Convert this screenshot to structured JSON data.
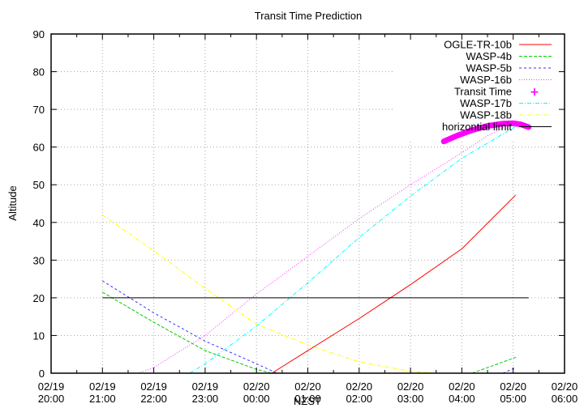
{
  "chart_data": {
    "type": "line",
    "title": "Transit Time Prediction",
    "xlabel": "NZST",
    "ylabel": "Altitude",
    "ylim": [
      0,
      90
    ],
    "yticks": [
      0,
      10,
      20,
      30,
      40,
      50,
      60,
      70,
      80,
      90
    ],
    "xlim_hours_from_start": [
      0,
      10
    ],
    "xticks": [
      {
        "h": 0,
        "date": "02/19",
        "time": "20:00"
      },
      {
        "h": 1,
        "date": "02/19",
        "time": "21:00"
      },
      {
        "h": 2,
        "date": "02/19",
        "time": "22:00"
      },
      {
        "h": 3,
        "date": "02/19",
        "time": "23:00"
      },
      {
        "h": 4,
        "date": "02/20",
        "time": "00:00"
      },
      {
        "h": 5,
        "date": "02/20",
        "time": "01:00"
      },
      {
        "h": 6,
        "date": "02/20",
        "time": "02:00"
      },
      {
        "h": 7,
        "date": "02/20",
        "time": "03:00"
      },
      {
        "h": 8,
        "date": "02/20",
        "time": "04:00"
      },
      {
        "h": 9,
        "date": "02/20",
        "time": "05:00"
      },
      {
        "h": 10,
        "date": "02/20",
        "time": "06:00"
      }
    ],
    "grid": true,
    "legend_position": "top-right",
    "series": [
      {
        "name": "OGLE-TR-10b",
        "color": "#ff0000",
        "dash": "",
        "width": 1,
        "points": [
          [
            4.3,
            0
          ],
          [
            5.0,
            6
          ],
          [
            6.0,
            14.5
          ],
          [
            7.0,
            23.5
          ],
          [
            8.0,
            33
          ],
          [
            9.05,
            47.3
          ]
        ]
      },
      {
        "name": "WASP-4b",
        "color": "#00cc00",
        "dash": "4,2",
        "width": 1,
        "points": [
          [
            1.0,
            21.5
          ],
          [
            2.0,
            13.5
          ],
          [
            3.0,
            6
          ],
          [
            4.0,
            1
          ],
          [
            4.3,
            0
          ]
        ],
        "points2": [
          [
            8.2,
            0
          ],
          [
            9.05,
            4.2
          ]
        ]
      },
      {
        "name": "WASP-5b",
        "color": "#3333ff",
        "dash": "3,3",
        "width": 1,
        "points": [
          [
            1.0,
            24.5
          ],
          [
            2.0,
            16
          ],
          [
            3.0,
            8.5
          ],
          [
            4.0,
            2.5
          ],
          [
            4.4,
            0
          ]
        ],
        "points2": [
          [
            8.8,
            0
          ],
          [
            9.05,
            1.5
          ]
        ]
      },
      {
        "name": "WASP-16b",
        "color": "#ff33ff",
        "dash": "1,2",
        "width": 1,
        "points": [
          [
            1.7,
            0
          ],
          [
            2.0,
            1.5
          ],
          [
            3.0,
            10
          ],
          [
            4.0,
            21
          ],
          [
            5.0,
            31
          ],
          [
            6.0,
            41
          ],
          [
            7.0,
            50
          ],
          [
            7.65,
            55.5
          ],
          [
            8.0,
            58.5
          ],
          [
            8.5,
            63
          ],
          [
            9.0,
            66.5
          ],
          [
            9.3,
            65.5
          ]
        ]
      },
      {
        "name": "Transit Time",
        "color": "#ff00ff",
        "marker": "plus",
        "width": 7,
        "points": [
          [
            7.65,
            61.5
          ],
          [
            7.9,
            63
          ],
          [
            8.2,
            64.5
          ],
          [
            8.5,
            65.6
          ],
          [
            8.8,
            66.2
          ],
          [
            9.0,
            66.3
          ],
          [
            9.15,
            66
          ],
          [
            9.3,
            65.3
          ]
        ]
      },
      {
        "name": "WASP-17b",
        "color": "#00ffff",
        "dash": "5,2,1,2",
        "width": 1,
        "points": [
          [
            2.7,
            0
          ],
          [
            3.0,
            2.5
          ],
          [
            4.0,
            12.5
          ],
          [
            5.0,
            24
          ],
          [
            6.0,
            36
          ],
          [
            7.0,
            47
          ],
          [
            8.0,
            57
          ],
          [
            9.05,
            65.5
          ]
        ]
      },
      {
        "name": "WASP-18b",
        "color": "#ffff00",
        "dash": "5,2,1,2",
        "width": 1,
        "points": [
          [
            1.0,
            42
          ],
          [
            2.0,
            32.5
          ],
          [
            3.0,
            22.5
          ],
          [
            4.0,
            13
          ],
          [
            5.0,
            7.5
          ],
          [
            6.0,
            3
          ],
          [
            7.0,
            0.5
          ],
          [
            7.5,
            0
          ]
        ]
      },
      {
        "name": "horizontial limit",
        "color": "#000000",
        "dash": "",
        "width": 1,
        "points": [
          [
            1.0,
            20
          ],
          [
            9.3,
            20
          ]
        ]
      }
    ]
  }
}
